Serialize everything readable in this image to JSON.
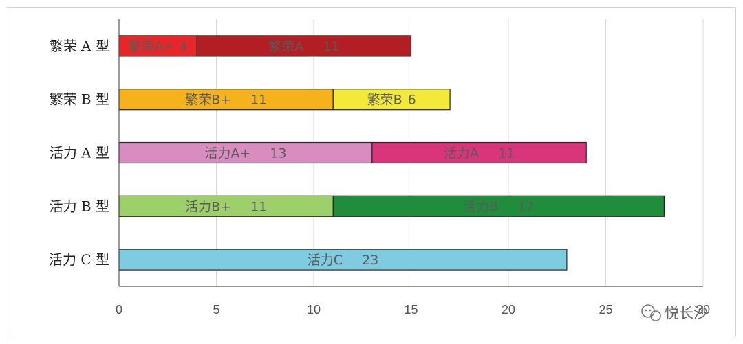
{
  "chart_data": {
    "type": "bar",
    "orientation": "horizontal",
    "stacked": true,
    "categories": [
      "繁荣 A 型",
      "繁荣 B 型",
      "活力 A 型",
      "活力 B 型",
      "活力 C 型"
    ],
    "segments": [
      [
        {
          "label": "繁荣A+",
          "value": 4,
          "color": "#e8262a"
        },
        {
          "label": "繁荣A",
          "value": 11,
          "color": "#b31e24"
        }
      ],
      [
        {
          "label": "繁荣B+",
          "value": 11,
          "color": "#f5b21c"
        },
        {
          "label": "繁荣B",
          "value": 6,
          "color": "#f3e93a"
        }
      ],
      [
        {
          "label": "活力A+",
          "value": 13,
          "color": "#d88cc0"
        },
        {
          "label": "活力A",
          "value": 11,
          "color": "#d9357a"
        }
      ],
      [
        {
          "label": "活力B+",
          "value": 11,
          "color": "#9dd06a"
        },
        {
          "label": "活力B",
          "value": 17,
          "color": "#1f8d3c"
        }
      ],
      [
        {
          "label": "活力C",
          "value": 23,
          "color": "#7fcbe0"
        }
      ]
    ],
    "xticks": [
      0,
      5,
      10,
      15,
      20,
      25,
      30
    ],
    "xlim": [
      0,
      30
    ],
    "grid": "vertical",
    "title": "",
    "xlabel": "",
    "ylabel": ""
  },
  "watermark": {
    "text": "悦长沙",
    "icon": "wechat-icon"
  }
}
